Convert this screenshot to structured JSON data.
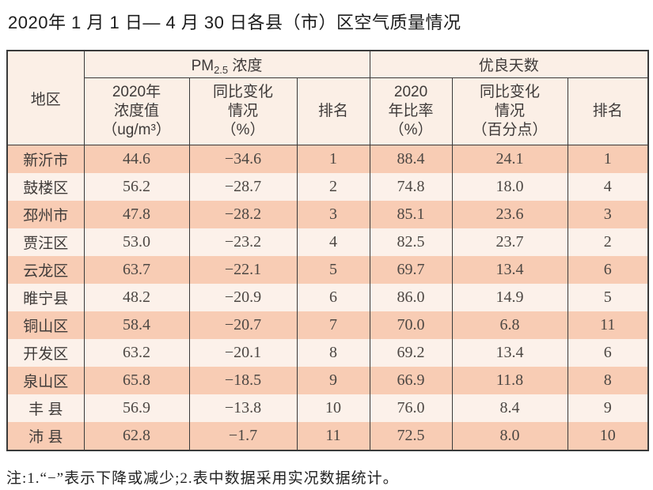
{
  "page": {
    "title": "2020年 1 月 1 日— 4 月 30 日各县（市）区空气质量情况",
    "footnote": "注:1.“−”表示下降或减少;2.表中数据采用实况数据统计。"
  },
  "table": {
    "col_region": "地区",
    "group_pm25": {
      "prefix": "PM",
      "sub": "2.5",
      "suffix": " 浓度"
    },
    "group_days": "优良天数",
    "subheaders": {
      "pm25_value": "2020年\n浓度值\n（ug/m³）",
      "pm25_change": "同比变化\n情况\n（%）",
      "pm25_rank": "排名",
      "days_rate": "2020\n年比率\n（%）",
      "days_change": "同比变化\n情况\n（百分点）",
      "days_rank": "排名"
    }
  },
  "colors": {
    "row_dark": "#f8ccb4",
    "row_light": "#fcf1ea",
    "header_bg": "#fbefe6",
    "border": "#3a3a3a"
  },
  "chart_data": {
    "type": "table",
    "title": "2020年1月1日—4月30日各县（市）区空气质量情况",
    "column_groups": [
      "地区",
      "PM2.5浓度",
      "优良天数"
    ],
    "columns": [
      "地区",
      "PM2.5浓度 2020年浓度值（ug/m³）",
      "PM2.5浓度 同比变化情况（%）",
      "PM2.5浓度 排名",
      "优良天数 2020年比率（%）",
      "优良天数 同比变化情况（百分点）",
      "优良天数 排名"
    ],
    "rows": [
      [
        "新沂市",
        "44.6",
        "−34.6",
        "1",
        "88.4",
        "24.1",
        "1"
      ],
      [
        "鼓楼区",
        "56.2",
        "−28.7",
        "2",
        "74.8",
        "18.0",
        "4"
      ],
      [
        "邳州市",
        "47.8",
        "−28.2",
        "3",
        "85.1",
        "23.6",
        "3"
      ],
      [
        "贾汪区",
        "53.0",
        "−23.2",
        "4",
        "82.5",
        "23.7",
        "2"
      ],
      [
        "云龙区",
        "63.7",
        "−22.1",
        "5",
        "69.7",
        "13.4",
        "6"
      ],
      [
        "睢宁县",
        "48.2",
        "−20.9",
        "6",
        "86.0",
        "14.9",
        "5"
      ],
      [
        "铜山区",
        "58.4",
        "−20.7",
        "7",
        "70.0",
        "6.8",
        "11"
      ],
      [
        "开发区",
        "63.2",
        "−20.1",
        "8",
        "69.2",
        "13.4",
        "6"
      ],
      [
        "泉山区",
        "65.8",
        "−18.5",
        "9",
        "66.9",
        "11.8",
        "8"
      ],
      [
        "丰 县",
        "56.9",
        "−13.8",
        "10",
        "76.0",
        "8.4",
        "9"
      ],
      [
        "沛 县",
        "62.8",
        "−1.7",
        "11",
        "72.5",
        "8.0",
        "10"
      ]
    ],
    "footnote": "注:1.“−”表示下降或减少;2.表中数据采用实况数据统计。"
  }
}
